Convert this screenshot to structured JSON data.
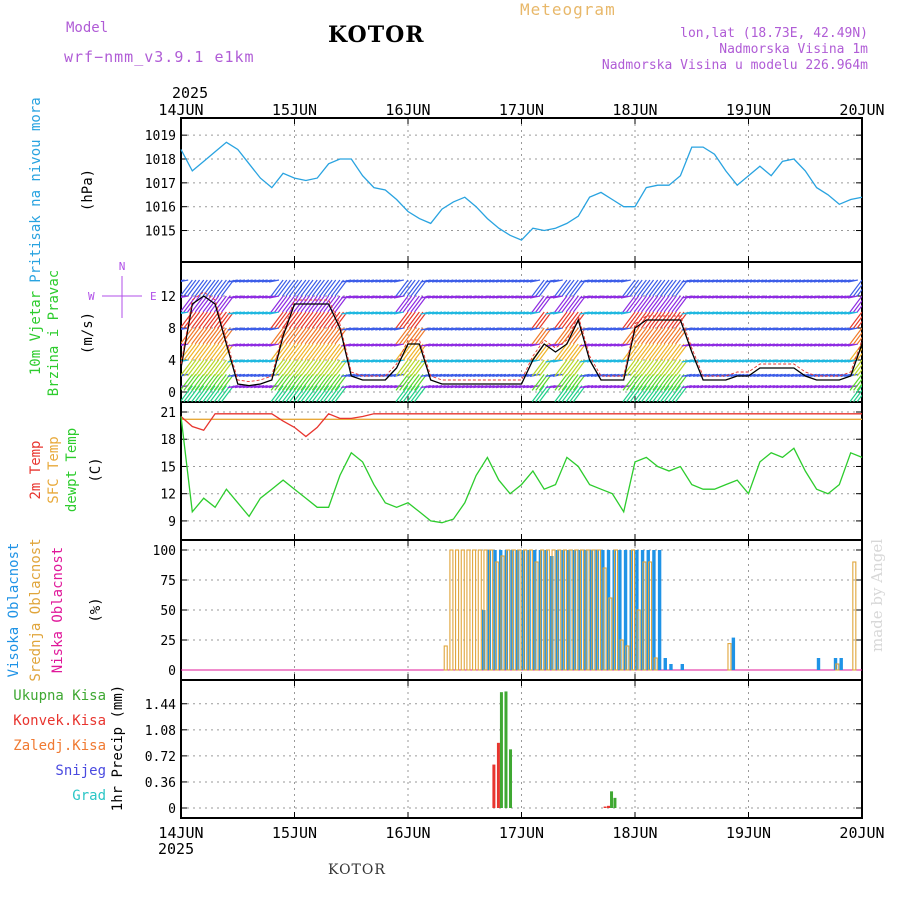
{
  "header": {
    "model_label": "Model",
    "model_name": "wrf−nmm_v3.9.1 e1km",
    "title": "KOTOR",
    "meteogram": "Meteogram",
    "lonlat": "lon,lat (18.73E, 42.49N)",
    "altitude": "Nadmorska Visina 1m",
    "model_altitude": "Nadmorska Visina u modelu 226.964m"
  },
  "footer": {
    "station": "KOTOR",
    "credit": "made by Angel"
  },
  "colors": {
    "pressure": "#29a3e0",
    "temp2m": "#e8352f",
    "sfc": "#e8a93a",
    "dewpt": "#2dcc2d",
    "cloud_high": "#1f93e6",
    "cloud_mid": "#e0a53b",
    "cloud_low": "#e0189a",
    "precip_total": "#3fa832",
    "precip_conv": "#e8352f",
    "wind_line": "#000000",
    "wind_ref": "#b04fe8",
    "snow": "#4a4ae0",
    "grad": "#2bc6c6",
    "zaledj": "#f07a32"
  },
  "chart_data": [
    {
      "type": "line",
      "panel": "pressure",
      "ylabel_left": "Pritisak na nivou mora",
      "ylabel_unit": "(hPa)",
      "year": "2025",
      "x_ticks": [
        "14JUN",
        "15JUN",
        "16JUN",
        "17JUN",
        "18JUN",
        "19JUN",
        "20JUN"
      ],
      "y_ticks": [
        "1015",
        "1016",
        "1017",
        "1018",
        "1019"
      ],
      "ylim": [
        1014.1,
        1019.3
      ],
      "x": [
        0,
        0.1,
        0.2,
        0.3,
        0.4,
        0.5,
        0.6,
        0.7,
        0.8,
        0.9,
        1.0,
        1.1,
        1.2,
        1.3,
        1.4,
        1.5,
        1.6,
        1.7,
        1.8,
        1.9,
        2.0,
        2.1,
        2.2,
        2.3,
        2.4,
        2.5,
        2.6,
        2.7,
        2.8,
        2.9,
        3.0,
        3.1,
        3.2,
        3.3,
        3.4,
        3.5,
        3.6,
        3.7,
        3.8,
        3.9,
        4.0,
        4.1,
        4.2,
        4.3,
        4.4,
        4.5,
        4.6,
        4.7,
        4.8,
        4.9,
        5.0,
        5.1,
        5.2,
        5.3,
        5.4,
        5.5,
        5.6,
        5.7,
        5.8,
        5.9,
        6.0
      ],
      "series": [
        {
          "values": [
            1018.4,
            1017.5,
            1017.9,
            1018.3,
            1018.7,
            1018.4,
            1017.8,
            1017.2,
            1016.8,
            1017.4,
            1017.2,
            1017.1,
            1017.2,
            1017.8,
            1018.0,
            1018.0,
            1017.3,
            1016.8,
            1016.7,
            1016.3,
            1015.8,
            1015.5,
            1015.3,
            1015.9,
            1016.2,
            1016.4,
            1016.0,
            1015.5,
            1015.1,
            1014.8,
            1014.6,
            1015.1,
            1015.0,
            1015.1,
            1015.3,
            1015.6,
            1016.4,
            1016.6,
            1016.3,
            1016.0,
            1016.0,
            1016.8,
            1016.9,
            1016.9,
            1017.3,
            1018.5,
            1018.5,
            1018.2,
            1017.5,
            1016.9,
            1017.3,
            1017.7,
            1017.3,
            1017.9,
            1018.0,
            1017.5,
            1016.8,
            1016.5,
            1016.1,
            1016.3,
            1016.4
          ]
        }
      ]
    },
    {
      "type": "line",
      "panel": "wind",
      "ylabel_left": [
        "10m Vjetar",
        "Brzina i Pravac"
      ],
      "ylabel_unit": "(m/s)",
      "compass": "N",
      "compass_w": "W",
      "compass_e": "E",
      "y_ticks": [
        "0",
        "4",
        "8",
        "12"
      ],
      "ylim": [
        0,
        15
      ],
      "x": [
        0,
        0.1,
        0.2,
        0.3,
        0.4,
        0.5,
        0.6,
        0.7,
        0.8,
        0.9,
        1.0,
        1.1,
        1.2,
        1.3,
        1.4,
        1.5,
        1.6,
        1.7,
        1.8,
        1.9,
        2.0,
        2.1,
        2.2,
        2.3,
        2.4,
        2.5,
        2.6,
        2.7,
        2.8,
        2.9,
        3.0,
        3.1,
        3.2,
        3.3,
        3.4,
        3.5,
        3.6,
        3.7,
        3.8,
        3.9,
        4.0,
        4.1,
        4.2,
        4.3,
        4.4,
        4.5,
        4.6,
        4.7,
        4.8,
        4.9,
        5.0,
        5.1,
        5.2,
        5.3,
        5.4,
        5.5,
        5.6,
        5.7,
        5.8,
        5.9,
        6.0
      ],
      "series": [
        {
          "values": [
            3,
            11,
            12,
            11,
            6,
            1,
            0.8,
            1,
            1.5,
            7,
            11,
            11,
            11,
            11,
            8,
            2,
            1.5,
            1.5,
            1.5,
            3,
            6,
            6,
            1.5,
            1,
            1,
            1,
            1,
            1,
            1,
            1,
            1,
            4,
            6,
            5,
            6,
            9,
            4,
            1.5,
            1.5,
            1.5,
            8,
            9,
            9,
            9,
            9,
            5,
            1.5,
            1.5,
            1.5,
            2,
            2,
            3,
            3,
            3,
            3,
            2,
            1.5,
            1.5,
            1.5,
            2,
            6
          ]
        }
      ]
    },
    {
      "type": "line",
      "panel": "temperature",
      "ylabel_left": [
        "2m Temp",
        "SFC Temp",
        "dewpt Temp"
      ],
      "ylabel_unit": "(C)",
      "y_ticks": [
        "9",
        "12",
        "15",
        "18",
        "21"
      ],
      "ylim": [
        8,
        21
      ],
      "x": [
        0,
        0.1,
        0.2,
        0.3,
        0.4,
        0.5,
        0.6,
        0.7,
        0.8,
        0.9,
        1.0,
        1.1,
        1.2,
        1.3,
        1.4,
        1.5,
        1.6,
        1.7,
        1.8,
        1.9,
        2.0,
        2.1,
        2.2,
        2.3,
        2.4,
        2.5,
        2.6,
        2.7,
        2.8,
        2.9,
        3.0,
        3.1,
        3.2,
        3.3,
        3.4,
        3.5,
        3.6,
        3.7,
        3.8,
        3.9,
        4.0,
        4.1,
        4.2,
        4.3,
        4.4,
        4.5,
        4.6,
        4.7,
        4.8,
        4.9,
        5.0,
        5.1,
        5.2,
        5.3,
        5.4,
        5.5,
        5.6,
        5.7,
        5.8,
        5.9,
        6.0
      ],
      "series": [
        {
          "name": "SFC Temp",
          "values": [
            20.2,
            20.2,
            20.2,
            20.2,
            20.2,
            20.2,
            20.2,
            20.2,
            20.2,
            20.2,
            20.2,
            20.2,
            20.2,
            20.2,
            20.2,
            20.2,
            20.2,
            20.2,
            20.2,
            20.2,
            20.2,
            20.2,
            20.2,
            20.2,
            20.2,
            20.2,
            20.2,
            20.2,
            20.2,
            20.2,
            20.2,
            20.2,
            20.2,
            20.2,
            20.2,
            20.2,
            20.2,
            20.2,
            20.2,
            20.2,
            20.2,
            20.2,
            20.2,
            20.2,
            20.2,
            20.2,
            20.2,
            20.2,
            20.2,
            20.2,
            20.2,
            20.2,
            20.2,
            20.2,
            20.2,
            20.2,
            20.2,
            20.2,
            20.2,
            20.2,
            20.2
          ]
        },
        {
          "name": "2m Temp",
          "values": [
            20.5,
            19.4,
            19.0,
            20.8,
            20.8,
            20.8,
            20.8,
            20.8,
            20.8,
            20.0,
            19.3,
            18.3,
            19.3,
            20.8,
            20.3,
            20.3,
            20.5,
            20.8,
            20.8,
            20.8,
            20.8,
            20.8,
            20.8,
            20.8,
            20.8,
            20.8,
            20.8,
            20.8,
            20.8,
            20.8,
            20.8,
            20.8,
            20.8,
            20.8,
            20.8,
            20.8,
            20.8,
            20.8,
            20.8,
            20.8,
            20.8,
            20.8,
            20.8,
            20.8,
            20.8,
            20.8,
            20.8,
            20.8,
            20.8,
            20.8,
            20.8,
            20.8,
            20.8,
            20.8,
            20.8,
            20.8,
            20.8,
            20.8,
            20.8,
            20.8,
            20.8
          ]
        },
        {
          "name": "dewpt Temp",
          "values": [
            20.5,
            10,
            11.5,
            10.5,
            12.5,
            11,
            9.5,
            11.5,
            12.5,
            13.5,
            12.5,
            11.5,
            10.5,
            10.5,
            14,
            16.5,
            15.5,
            13,
            11,
            10.5,
            11,
            10,
            9,
            8.8,
            9.2,
            11,
            14,
            16,
            13.5,
            12,
            13,
            14.5,
            12.5,
            13,
            16,
            15,
            13,
            12.5,
            12,
            10,
            15.5,
            16,
            15,
            14.5,
            15,
            13,
            12.5,
            12.5,
            13,
            13.5,
            12,
            15.5,
            16.5,
            16,
            17,
            14.5,
            12.5,
            12,
            13,
            16.5,
            16
          ]
        }
      ]
    },
    {
      "type": "bar",
      "panel": "clouds",
      "ylabel_left": [
        "Visoka Oblacnost",
        "Srednja Oblacnost",
        "Niska Oblacnost"
      ],
      "ylabel_unit": "(%)",
      "y_ticks": [
        "0",
        "25",
        "50",
        "75",
        "100"
      ],
      "ylim": [
        0,
        100
      ],
      "x": [
        2.35,
        2.4,
        2.45,
        2.5,
        2.55,
        2.6,
        2.65,
        2.7,
        2.75,
        2.8,
        2.85,
        2.9,
        2.95,
        3.0,
        3.05,
        3.1,
        3.15,
        3.2,
        3.25,
        3.3,
        3.35,
        3.4,
        3.45,
        3.5,
        3.55,
        3.6,
        3.65,
        3.7,
        3.75,
        3.8,
        3.85,
        3.9,
        3.95,
        4.0,
        4.05,
        4.1,
        4.15,
        4.2,
        4.25,
        4.3,
        4.4,
        4.85,
        5.6,
        5.75,
        5.8,
        5.95
      ],
      "series": [
        {
          "name": "Srednja Oblacnost",
          "values": [
            20,
            100,
            100,
            100,
            100,
            100,
            100,
            100,
            100,
            90,
            95,
            100,
            100,
            100,
            100,
            100,
            90,
            100,
            100,
            100,
            100,
            100,
            100,
            100,
            100,
            100,
            100,
            100,
            85,
            60,
            100,
            25,
            20,
            100,
            50,
            90,
            90,
            10,
            0,
            0,
            0,
            22,
            0,
            0,
            5,
            90
          ]
        },
        {
          "name": "Visoka Oblacnost",
          "values": [
            0,
            0,
            0,
            0,
            0,
            0,
            50,
            100,
            100,
            100,
            100,
            100,
            100,
            100,
            100,
            100,
            100,
            100,
            95,
            100,
            100,
            100,
            100,
            100,
            100,
            100,
            100,
            100,
            100,
            100,
            100,
            100,
            100,
            100,
            100,
            100,
            100,
            100,
            10,
            5,
            5,
            27,
            10,
            10,
            10,
            0
          ]
        }
      ]
    },
    {
      "type": "bar",
      "panel": "precip",
      "ylabel_left": [
        "Ukupna Kisa",
        "Konvek.Kisa",
        "Zaledj.Kisa",
        "Snijeg",
        "Grad"
      ],
      "ylabel_unit": "1hr Precip (mm)",
      "y_ticks": [
        "0",
        "0.36",
        "0.72",
        "1.08",
        "1.44"
      ],
      "ylim": [
        0,
        1.63
      ],
      "x": [
        2.77,
        2.81,
        2.85,
        2.89,
        3.75,
        3.78,
        3.81
      ],
      "series": [
        {
          "name": "Ukupna Kisa",
          "values": [
            0,
            1.6,
            1.61,
            0.81,
            0,
            0.23,
            0.14
          ]
        },
        {
          "name": "Konvek.Kisa",
          "values": [
            0.6,
            0.9,
            0,
            0,
            0.02,
            0.03,
            0
          ]
        }
      ],
      "x_ticks_bottom": [
        "14JUN",
        "15JUN",
        "16JUN",
        "17JUN",
        "18JUN",
        "19JUN",
        "20JUN"
      ],
      "year_bottom": "2025"
    }
  ]
}
